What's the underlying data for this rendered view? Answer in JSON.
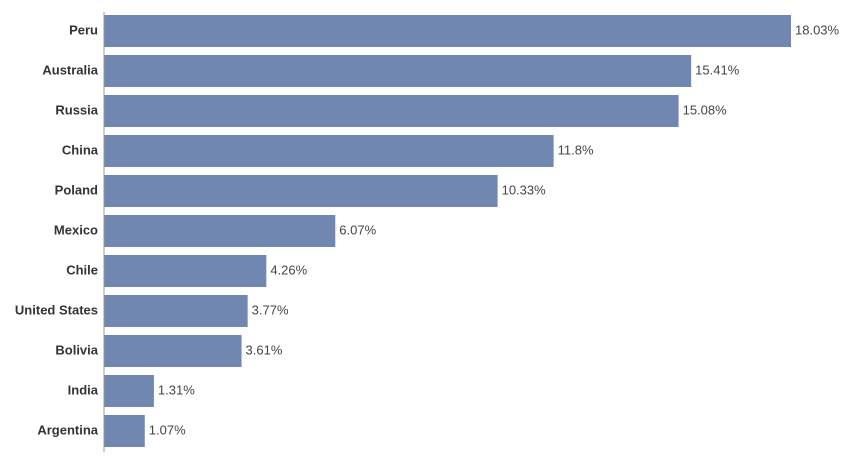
{
  "chart_data": {
    "type": "bar",
    "orientation": "horizontal",
    "title": "",
    "xlabel": "",
    "ylabel": "",
    "categories": [
      "Peru",
      "Australia",
      "Russia",
      "China",
      "Poland",
      "Mexico",
      "Chile",
      "United States",
      "Bolivia",
      "India",
      "Argentina"
    ],
    "values": [
      18.03,
      15.41,
      15.08,
      11.8,
      10.33,
      6.07,
      4.26,
      3.77,
      3.61,
      1.31,
      1.07
    ],
    "value_labels": [
      "18.03%",
      "15.41%",
      "15.08%",
      "11.8%",
      "10.33%",
      "6.07%",
      "4.26%",
      "3.77%",
      "3.61%",
      "1.31%",
      "1.07%"
    ],
    "xlim": [
      0,
      18.03
    ],
    "grid": false,
    "legend": "none",
    "bar_color": "#6f87b1",
    "axis_color": "#999999"
  }
}
